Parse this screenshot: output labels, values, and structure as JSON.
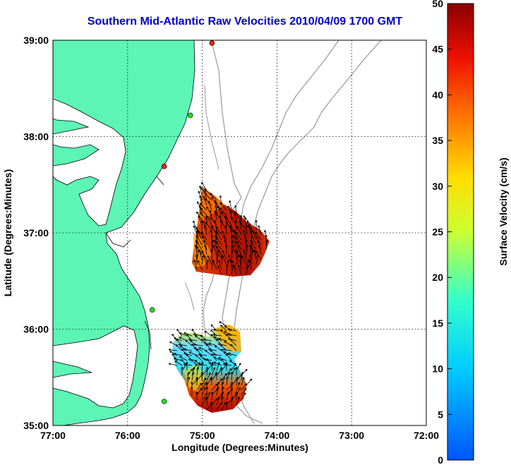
{
  "title": "Southern Mid-Atlantic Raw Velocities 2010/04/09 1700 GMT",
  "chart_data": {
    "type": "map",
    "xlabel": "Longitude (Degrees:Minutes)",
    "ylabel": "Latitude (Degrees:Minutes)",
    "x_ticks": [
      "77:00",
      "76:00",
      "75:00",
      "74:00",
      "73:00",
      "72:00"
    ],
    "y_ticks": [
      "39:00",
      "38:00",
      "37:00",
      "36:00",
      "35:00"
    ],
    "x_range_deg_west": [
      77,
      72
    ],
    "y_range_deg_north": [
      35,
      39
    ],
    "grid": "dotted",
    "colorbar": {
      "label": "Surface Velocity (cm/s)",
      "ticks": [
        "50",
        "45",
        "40",
        "35",
        "30",
        "25",
        "20",
        "15",
        "10",
        "5",
        "0"
      ],
      "range": [
        0,
        50
      ],
      "colormap": "jet"
    },
    "land_color": "#5cf5b5",
    "site_colors": {
      "active": "#22dd22",
      "inactive": "#ee2222"
    },
    "radar_sites": [
      {
        "lon": 74.87,
        "lat": 38.97,
        "status": "inactive"
      },
      {
        "lon": 75.16,
        "lat": 38.22,
        "status": "active"
      },
      {
        "lon": 75.51,
        "lat": 37.69,
        "status": "inactive"
      },
      {
        "lon": 75.67,
        "lat": 36.2,
        "status": "active"
      },
      {
        "lon": 75.51,
        "lat": 35.25,
        "status": "active"
      }
    ]
  }
}
